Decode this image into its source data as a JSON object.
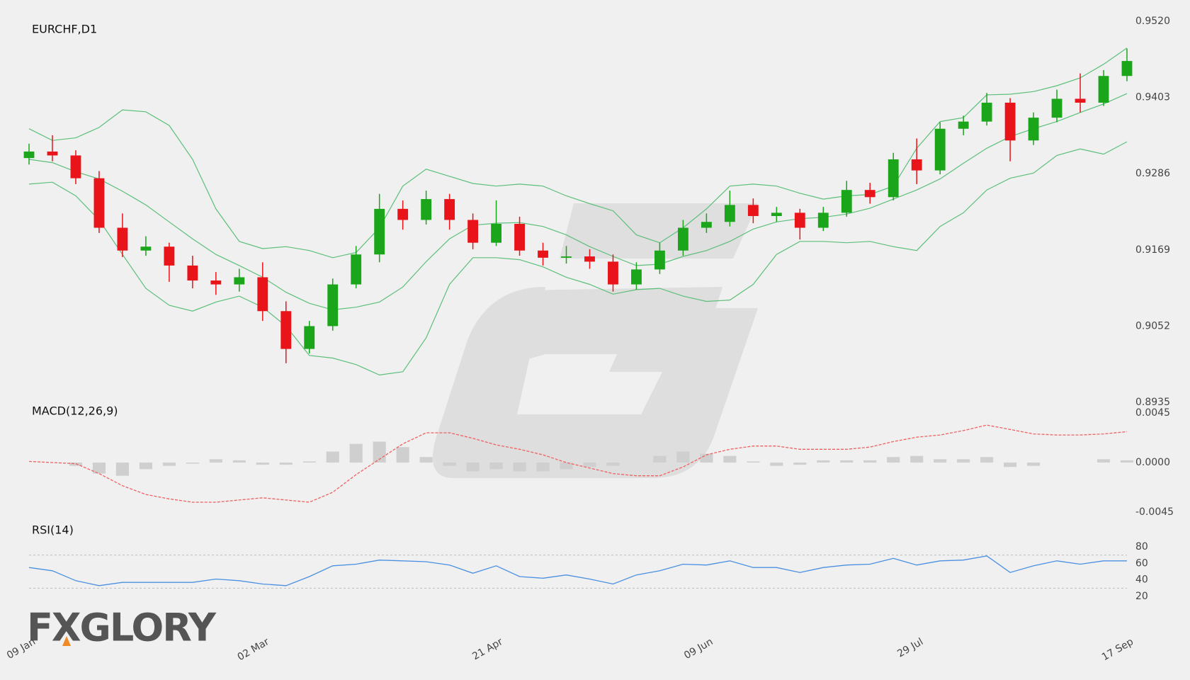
{
  "logo": "FXGLORY",
  "chart_data": [
    {
      "type": "candlestick",
      "title": "EURCHF,D1",
      "x": [
        "09 Jan",
        null,
        null,
        null,
        null,
        null,
        null,
        null,
        null,
        null,
        "02 Mar",
        null,
        null,
        null,
        null,
        null,
        null,
        null,
        null,
        null,
        "21 Apr",
        null,
        null,
        null,
        null,
        null,
        null,
        null,
        null,
        "09 Jun",
        null,
        null,
        null,
        null,
        null,
        null,
        null,
        null,
        "29 Jul",
        null,
        null,
        null,
        null,
        null,
        null,
        null,
        null,
        "17 Sep"
      ],
      "open": [
        0.931,
        0.932,
        0.9314,
        0.9279,
        0.9203,
        0.9168,
        0.9174,
        0.9145,
        0.9122,
        0.9116,
        0.9127,
        0.9075,
        0.9017,
        0.9052,
        0.9116,
        0.9162,
        0.9232,
        0.9215,
        0.9247,
        0.9215,
        0.918,
        0.9209,
        0.9168,
        0.9157,
        0.9159,
        0.9151,
        0.9116,
        0.9139,
        0.9168,
        0.9203,
        0.9212,
        0.9238,
        0.9221,
        0.9226,
        0.9203,
        0.9226,
        0.9261,
        0.925,
        0.9308,
        0.9291,
        0.9355,
        0.9366,
        0.9395,
        0.9337,
        0.9372,
        0.9401,
        0.9395,
        0.9436
      ],
      "high": [
        0.9332,
        0.9345,
        0.9322,
        0.929,
        0.9225,
        0.919,
        0.918,
        0.916,
        0.9135,
        0.914,
        0.915,
        0.909,
        0.906,
        0.9125,
        0.9175,
        0.9255,
        0.9245,
        0.926,
        0.9255,
        0.9225,
        0.9245,
        0.922,
        0.918,
        0.9175,
        0.917,
        0.9162,
        0.915,
        0.918,
        0.9215,
        0.9225,
        0.926,
        0.9248,
        0.9235,
        0.9232,
        0.9235,
        0.9275,
        0.9272,
        0.9318,
        0.934,
        0.9365,
        0.9375,
        0.941,
        0.9402,
        0.938,
        0.9415,
        0.944,
        0.9445,
        0.9478
      ],
      "low": [
        0.93,
        0.9305,
        0.927,
        0.9195,
        0.9158,
        0.916,
        0.912,
        0.911,
        0.91,
        0.9105,
        0.906,
        0.8995,
        0.901,
        0.9045,
        0.911,
        0.915,
        0.92,
        0.9208,
        0.92,
        0.917,
        0.9175,
        0.916,
        0.9145,
        0.9148,
        0.914,
        0.9105,
        0.9108,
        0.9132,
        0.916,
        0.9195,
        0.9205,
        0.921,
        0.9212,
        0.9185,
        0.9198,
        0.922,
        0.924,
        0.9245,
        0.927,
        0.9285,
        0.9345,
        0.936,
        0.9305,
        0.933,
        0.9365,
        0.938,
        0.939,
        0.9428
      ],
      "close": [
        0.932,
        0.9314,
        0.9279,
        0.9203,
        0.9168,
        0.9174,
        0.9145,
        0.9122,
        0.9116,
        0.9127,
        0.9075,
        0.9017,
        0.9052,
        0.9116,
        0.9162,
        0.9232,
        0.9215,
        0.9247,
        0.9215,
        0.918,
        0.9209,
        0.9168,
        0.9157,
        0.9159,
        0.9151,
        0.9116,
        0.9139,
        0.9168,
        0.9203,
        0.9212,
        0.9238,
        0.9221,
        0.9226,
        0.9203,
        0.9226,
        0.9261,
        0.925,
        0.9308,
        0.9291,
        0.9355,
        0.9366,
        0.9395,
        0.9337,
        0.9372,
        0.9401,
        0.9395,
        0.9436,
        0.9459
      ],
      "up_color": "#1aa51a",
      "down_color": "#e8141a",
      "bands": {
        "color": "#5cbf7a",
        "upper": [
          0.9355,
          0.9337,
          0.9341,
          0.9357,
          0.9384,
          0.9381,
          0.936,
          0.9308,
          0.9232,
          0.9182,
          0.9171,
          0.9174,
          0.9168,
          0.9157,
          0.9165,
          0.9203,
          0.9267,
          0.9293,
          0.9282,
          0.9271,
          0.9267,
          0.927,
          0.9267,
          0.9252,
          0.924,
          0.9229,
          0.9192,
          0.918,
          0.9203,
          0.9232,
          0.9267,
          0.927,
          0.9267,
          0.9256,
          0.9247,
          0.9252,
          0.9254,
          0.9267,
          0.9325,
          0.9366,
          0.9372,
          0.9407,
          0.9408,
          0.9412,
          0.9421,
          0.9433,
          0.9454,
          0.9479
        ],
        "middle": [
          0.9308,
          0.9303,
          0.9289,
          0.9278,
          0.9259,
          0.9238,
          0.9212,
          0.9186,
          0.9162,
          0.9145,
          0.9127,
          0.9104,
          0.9087,
          0.9077,
          0.9081,
          0.9089,
          0.9112,
          0.9151,
          0.9186,
          0.9207,
          0.921,
          0.9211,
          0.9205,
          0.9192,
          0.9174,
          0.9159,
          0.9145,
          0.9147,
          0.9159,
          0.9168,
          0.9182,
          0.9201,
          0.9212,
          0.9217,
          0.9219,
          0.9224,
          0.9233,
          0.9247,
          0.9261,
          0.9278,
          0.9302,
          0.9325,
          0.9343,
          0.9355,
          0.9366,
          0.938,
          0.9393,
          0.9409
        ],
        "lower": [
          0.927,
          0.9273,
          0.9252,
          0.9215,
          0.9162,
          0.911,
          0.9084,
          0.9075,
          0.9089,
          0.9098,
          0.9081,
          0.9052,
          0.9007,
          0.9003,
          0.8993,
          0.8977,
          0.8982,
          0.9034,
          0.9116,
          0.9157,
          0.9157,
          0.9154,
          0.9143,
          0.9127,
          0.9116,
          0.9101,
          0.9108,
          0.911,
          0.9098,
          0.909,
          0.9092,
          0.9116,
          0.9162,
          0.9182,
          0.9182,
          0.918,
          0.9182,
          0.9174,
          0.9168,
          0.9205,
          0.9226,
          0.9261,
          0.9279,
          0.9287,
          0.9314,
          0.9324,
          0.9316,
          0.9335
        ]
      },
      "ylim": [
        0.8935,
        0.952
      ],
      "yticks": [
        {
          "value": 0.952,
          "label": "0.9520"
        },
        0.9403,
        0.9286,
        0.9169,
        0.9052,
        0.8935
      ]
    },
    {
      "type": "macd",
      "title": "MACD(12,26,9)",
      "histogram": {
        "color": "#cfcfcf",
        "values": [
          0,
          0,
          -0.0003,
          -0.001,
          -0.0012,
          -0.0006,
          -0.0003,
          -0.0001,
          0.0003,
          0.0002,
          -0.0002,
          -0.0002,
          0.0001,
          0.001,
          0.0017,
          0.0019,
          0.0014,
          0.0005,
          -0.0003,
          -0.0008,
          -0.0006,
          -0.0008,
          -0.0008,
          -0.0006,
          -0.0004,
          -0.0003,
          0,
          0.0006,
          0.001,
          0.0008,
          0.0006,
          0.0001,
          -0.0003,
          -0.0002,
          0.0002,
          0.0002,
          0.0002,
          0.0005,
          0.0006,
          0.0003,
          0.0003,
          0.0005,
          -0.0004,
          -0.0003,
          0,
          0,
          0.0003,
          0.0002
        ]
      },
      "signal": {
        "color": "#f06060",
        "values": [
          0.0001,
          0,
          -0.0001,
          -0.001,
          -0.0021,
          -0.0029,
          -0.0033,
          -0.0036,
          -0.0036,
          -0.0034,
          -0.0032,
          -0.0034,
          -0.0036,
          -0.0027,
          -0.0011,
          0.0003,
          0.0017,
          0.0027,
          0.0027,
          0.0022,
          0.0016,
          0.0012,
          0.0007,
          0,
          -0.0005,
          -0.001,
          -0.0012,
          -0.0012,
          -0.0004,
          0.0007,
          0.0012,
          0.0015,
          0.0015,
          0.0012,
          0.0012,
          0.0012,
          0.0014,
          0.0019,
          0.0023,
          0.0025,
          0.0029,
          0.0034,
          0.003,
          0.0026,
          0.0025,
          0.0025,
          0.0026,
          0.0028
        ]
      },
      "ylim": [
        -0.0045,
        0.0045
      ],
      "yticks": [
        0.0045,
        {
          "value": 0,
          "label": "0.0000"
        },
        -0.0045
      ]
    },
    {
      "type": "rsi",
      "title": "RSI(14)",
      "color": "#4a90e2",
      "values": [
        55,
        51,
        39,
        33,
        37,
        37,
        37,
        37,
        41,
        39,
        35,
        33,
        44,
        57,
        59,
        64,
        63,
        62,
        58,
        48,
        57,
        44,
        42,
        46,
        41,
        35,
        46,
        51,
        59,
        58,
        63,
        55,
        55,
        49,
        55,
        58,
        59,
        66,
        58,
        63,
        64,
        69,
        49,
        57,
        63,
        59,
        63,
        63
      ],
      "levels": [
        70,
        30
      ],
      "ylim": [
        20,
        80
      ],
      "yticks": [
        80,
        60,
        40,
        20
      ]
    }
  ]
}
